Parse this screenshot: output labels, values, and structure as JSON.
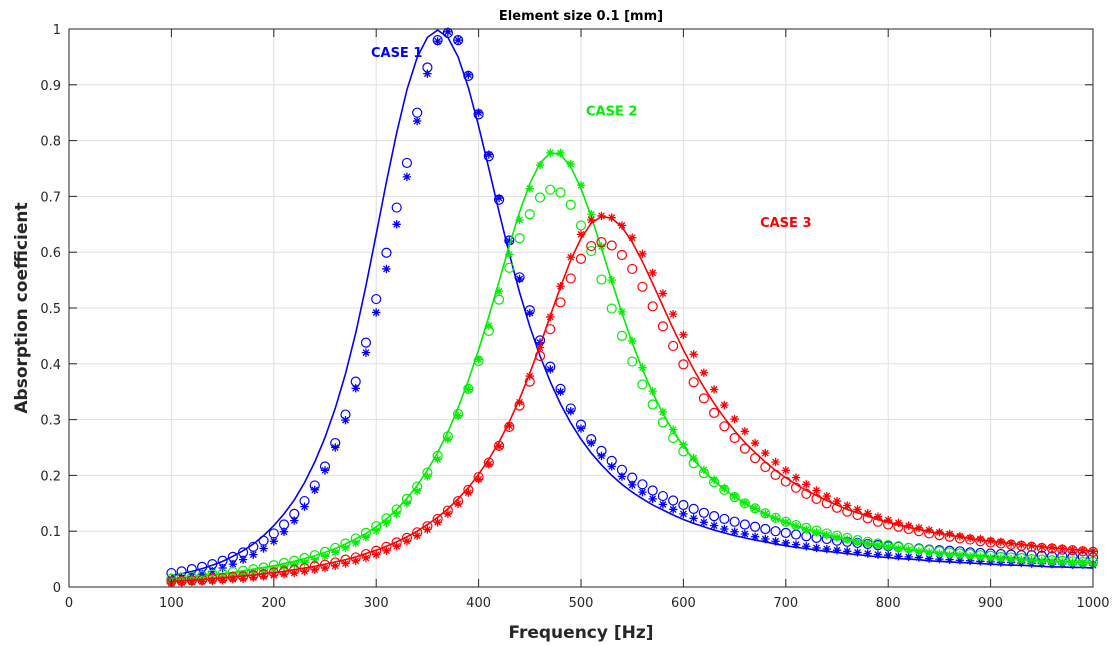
{
  "chart_data": {
    "type": "line",
    "title": "Element size 0.1 [mm]",
    "xlabel": "Frequency [Hz]",
    "ylabel": "Absorption coefficient",
    "xlim": [
      0,
      1000
    ],
    "ylim": [
      0,
      1
    ],
    "xticks": [
      "0",
      "100",
      "200",
      "300",
      "400",
      "500",
      "600",
      "700",
      "800",
      "900",
      "1000"
    ],
    "yticks": [
      "0",
      "0.1",
      "0.2",
      "0.3",
      "0.4",
      "0.5",
      "0.6",
      "0.7",
      "0.8",
      "0.9",
      "1"
    ],
    "grid": true,
    "marker_x": [
      100,
      110,
      120,
      130,
      140,
      150,
      160,
      170,
      180,
      190,
      200,
      210,
      220,
      230,
      240,
      250,
      260,
      270,
      280,
      290,
      300,
      310,
      320,
      330,
      340,
      350,
      360,
      370,
      380,
      390,
      400,
      410,
      420,
      430,
      440,
      450,
      460,
      470,
      480,
      490,
      500,
      510,
      520,
      530,
      540,
      550,
      560,
      570,
      580,
      590,
      600,
      610,
      620,
      630,
      640,
      650,
      660,
      670,
      680,
      690,
      700,
      710,
      720,
      730,
      740,
      750,
      760,
      770,
      780,
      790,
      800,
      810,
      820,
      830,
      840,
      850,
      860,
      870,
      880,
      890,
      900,
      910,
      920,
      930,
      940,
      950,
      960,
      970,
      980,
      990,
      1000
    ],
    "annotations": [
      {
        "text": "CASE 1",
        "x": 320,
        "y": 0.95,
        "color": "#0000ff"
      },
      {
        "text": "CASE 2",
        "x": 530,
        "y": 0.845,
        "color": "#00ee00"
      },
      {
        "text": "CASE 3",
        "x": 700,
        "y": 0.645,
        "color": "#ff0000"
      }
    ],
    "series": [
      {
        "color": "#0000ff",
        "type": "line",
        "values": [
          0.02,
          0.024,
          0.028,
          0.033,
          0.039,
          0.046,
          0.055,
          0.065,
          0.077,
          0.092,
          0.11,
          0.131,
          0.156,
          0.187,
          0.224,
          0.268,
          0.32,
          0.382,
          0.455,
          0.54,
          0.632,
          0.726,
          0.814,
          0.891,
          0.949,
          0.985,
          0.998,
          0.985,
          0.95,
          0.895,
          0.826,
          0.75,
          0.672,
          0.597,
          0.528,
          0.467,
          0.414,
          0.368,
          0.328,
          0.294,
          0.265,
          0.24,
          0.219,
          0.2,
          0.184,
          0.17,
          0.158,
          0.147,
          0.138,
          0.129,
          0.121,
          0.114,
          0.108,
          0.102,
          0.097,
          0.092,
          0.088,
          0.084,
          0.081,
          0.077,
          0.074,
          0.071,
          0.069,
          0.066,
          0.064,
          0.062,
          0.06,
          0.058,
          0.056,
          0.054,
          0.053,
          0.051,
          0.05,
          0.049,
          0.047,
          0.046,
          0.045,
          0.044,
          0.043,
          0.042,
          0.041,
          0.04,
          0.039,
          0.039,
          0.038,
          0.037,
          0.036,
          0.036,
          0.035,
          0.035,
          0.034
        ]
      },
      {
        "color": "#0000ff",
        "type": "circle",
        "values": [
          0.025,
          0.028,
          0.032,
          0.036,
          0.041,
          0.047,
          0.054,
          0.062,
          0.072,
          0.083,
          0.096,
          0.112,
          0.131,
          0.154,
          0.182,
          0.216,
          0.258,
          0.309,
          0.368,
          0.438,
          0.516,
          0.599,
          0.68,
          0.76,
          0.85,
          0.931,
          0.98,
          0.993,
          0.98,
          0.916,
          0.847,
          0.772,
          0.694,
          0.621,
          0.555,
          0.496,
          0.442,
          0.395,
          0.355,
          0.32,
          0.291,
          0.265,
          0.244,
          0.226,
          0.21,
          0.196,
          0.184,
          0.173,
          0.163,
          0.155,
          0.147,
          0.14,
          0.133,
          0.127,
          0.122,
          0.117,
          0.112,
          0.108,
          0.104,
          0.1,
          0.097,
          0.094,
          0.091,
          0.088,
          0.086,
          0.083,
          0.081,
          0.079,
          0.077,
          0.075,
          0.073,
          0.072,
          0.07,
          0.069,
          0.067,
          0.066,
          0.065,
          0.064,
          0.062,
          0.061,
          0.06,
          0.059,
          0.058,
          0.057,
          0.057,
          0.056,
          0.055,
          0.055,
          0.054,
          0.054,
          0.053
        ]
      },
      {
        "color": "#0000ff",
        "type": "star",
        "values": [
          0.013,
          0.016,
          0.019,
          0.023,
          0.028,
          0.034,
          0.041,
          0.049,
          0.058,
          0.069,
          0.082,
          0.099,
          0.119,
          0.144,
          0.174,
          0.209,
          0.25,
          0.299,
          0.356,
          0.42,
          0.492,
          0.57,
          0.65,
          0.735,
          0.835,
          0.92,
          0.978,
          0.995,
          0.98,
          0.918,
          0.85,
          0.775,
          0.697,
          0.62,
          0.552,
          0.491,
          0.438,
          0.39,
          0.35,
          0.315,
          0.284,
          0.258,
          0.235,
          0.216,
          0.198,
          0.183,
          0.17,
          0.158,
          0.148,
          0.139,
          0.131,
          0.123,
          0.116,
          0.11,
          0.104,
          0.099,
          0.095,
          0.09,
          0.086,
          0.082,
          0.079,
          0.076,
          0.073,
          0.07,
          0.068,
          0.066,
          0.064,
          0.062,
          0.06,
          0.058,
          0.057,
          0.055,
          0.054,
          0.053,
          0.051,
          0.05,
          0.049,
          0.048,
          0.047,
          0.046,
          0.045,
          0.044,
          0.044,
          0.043,
          0.042,
          0.042,
          0.041,
          0.041,
          0.04,
          0.04,
          0.039
        ]
      },
      {
        "color": "#00ee00",
        "type": "line",
        "values": [
          0.015,
          0.016,
          0.018,
          0.02,
          0.022,
          0.024,
          0.026,
          0.029,
          0.032,
          0.035,
          0.038,
          0.042,
          0.046,
          0.051,
          0.056,
          0.062,
          0.069,
          0.077,
          0.086,
          0.096,
          0.108,
          0.122,
          0.139,
          0.159,
          0.182,
          0.209,
          0.241,
          0.278,
          0.321,
          0.37,
          0.425,
          0.485,
          0.548,
          0.612,
          0.672,
          0.723,
          0.76,
          0.778,
          0.775,
          0.753,
          0.714,
          0.664,
          0.607,
          0.548,
          0.491,
          0.438,
          0.39,
          0.348,
          0.311,
          0.279,
          0.252,
          0.228,
          0.208,
          0.19,
          0.175,
          0.162,
          0.15,
          0.14,
          0.131,
          0.123,
          0.116,
          0.109,
          0.104,
          0.098,
          0.094,
          0.089,
          0.085,
          0.082,
          0.078,
          0.075,
          0.072,
          0.07,
          0.067,
          0.065,
          0.063,
          0.061,
          0.059,
          0.058,
          0.056,
          0.055,
          0.053,
          0.052,
          0.051,
          0.05,
          0.048,
          0.047,
          0.046,
          0.045,
          0.045,
          0.044,
          0.043
        ]
      },
      {
        "color": "#00ee00",
        "type": "circle",
        "values": [
          0.015,
          0.017,
          0.018,
          0.02,
          0.022,
          0.024,
          0.027,
          0.029,
          0.032,
          0.035,
          0.039,
          0.043,
          0.047,
          0.052,
          0.057,
          0.063,
          0.07,
          0.078,
          0.087,
          0.097,
          0.109,
          0.123,
          0.139,
          0.158,
          0.18,
          0.205,
          0.235,
          0.27,
          0.31,
          0.355,
          0.405,
          0.459,
          0.515,
          0.572,
          0.625,
          0.668,
          0.698,
          0.712,
          0.707,
          0.685,
          0.648,
          0.602,
          0.551,
          0.499,
          0.45,
          0.404,
          0.363,
          0.327,
          0.295,
          0.267,
          0.243,
          0.222,
          0.204,
          0.188,
          0.174,
          0.161,
          0.15,
          0.141,
          0.132,
          0.124,
          0.117,
          0.111,
          0.106,
          0.101,
          0.096,
          0.092,
          0.088,
          0.084,
          0.081,
          0.078,
          0.075,
          0.073,
          0.07,
          0.068,
          0.066,
          0.064,
          0.062,
          0.06,
          0.059,
          0.057,
          0.056,
          0.054,
          0.053,
          0.052,
          0.05,
          0.049,
          0.048,
          0.047,
          0.046,
          0.045,
          0.045
        ]
      },
      {
        "color": "#00ee00",
        "type": "star",
        "values": [
          0.011,
          0.012,
          0.014,
          0.015,
          0.017,
          0.019,
          0.021,
          0.023,
          0.026,
          0.029,
          0.032,
          0.036,
          0.04,
          0.044,
          0.049,
          0.055,
          0.062,
          0.07,
          0.079,
          0.089,
          0.101,
          0.115,
          0.131,
          0.15,
          0.172,
          0.198,
          0.229,
          0.265,
          0.307,
          0.354,
          0.408,
          0.468,
          0.53,
          0.596,
          0.658,
          0.714,
          0.756,
          0.778,
          0.778,
          0.758,
          0.72,
          0.668,
          0.61,
          0.55,
          0.493,
          0.441,
          0.393,
          0.351,
          0.314,
          0.282,
          0.255,
          0.231,
          0.21,
          0.192,
          0.177,
          0.163,
          0.151,
          0.141,
          0.131,
          0.123,
          0.116,
          0.109,
          0.103,
          0.098,
          0.093,
          0.089,
          0.085,
          0.081,
          0.078,
          0.075,
          0.072,
          0.069,
          0.067,
          0.064,
          0.062,
          0.06,
          0.058,
          0.057,
          0.055,
          0.054,
          0.052,
          0.051,
          0.05,
          0.049,
          0.048,
          0.047,
          0.046,
          0.045,
          0.044,
          0.043,
          0.042
        ]
      },
      {
        "color": "#ff0000",
        "type": "line",
        "values": [
          0.01,
          0.011,
          0.012,
          0.013,
          0.015,
          0.016,
          0.018,
          0.02,
          0.021,
          0.024,
          0.026,
          0.028,
          0.031,
          0.034,
          0.037,
          0.041,
          0.045,
          0.049,
          0.054,
          0.06,
          0.066,
          0.073,
          0.081,
          0.09,
          0.1,
          0.112,
          0.125,
          0.14,
          0.158,
          0.178,
          0.202,
          0.229,
          0.26,
          0.296,
          0.337,
          0.383,
          0.433,
          0.486,
          0.538,
          0.586,
          0.625,
          0.652,
          0.664,
          0.661,
          0.645,
          0.618,
          0.583,
          0.544,
          0.503,
          0.463,
          0.425,
          0.39,
          0.358,
          0.329,
          0.303,
          0.28,
          0.259,
          0.241,
          0.224,
          0.209,
          0.196,
          0.184,
          0.173,
          0.164,
          0.155,
          0.147,
          0.139,
          0.133,
          0.127,
          0.121,
          0.116,
          0.111,
          0.107,
          0.103,
          0.099,
          0.096,
          0.093,
          0.09,
          0.087,
          0.084,
          0.082,
          0.08,
          0.078,
          0.076,
          0.074,
          0.072,
          0.07,
          0.069,
          0.067,
          0.066,
          0.064
        ]
      },
      {
        "color": "#ff0000",
        "type": "circle",
        "values": [
          0.01,
          0.011,
          0.012,
          0.013,
          0.015,
          0.016,
          0.018,
          0.019,
          0.021,
          0.023,
          0.026,
          0.028,
          0.031,
          0.034,
          0.037,
          0.04,
          0.044,
          0.049,
          0.053,
          0.059,
          0.065,
          0.072,
          0.08,
          0.088,
          0.098,
          0.109,
          0.122,
          0.137,
          0.154,
          0.174,
          0.197,
          0.223,
          0.253,
          0.287,
          0.325,
          0.368,
          0.414,
          0.462,
          0.51,
          0.553,
          0.588,
          0.611,
          0.618,
          0.612,
          0.595,
          0.57,
          0.538,
          0.503,
          0.467,
          0.432,
          0.399,
          0.367,
          0.338,
          0.312,
          0.288,
          0.267,
          0.248,
          0.231,
          0.215,
          0.201,
          0.189,
          0.178,
          0.167,
          0.158,
          0.15,
          0.142,
          0.135,
          0.129,
          0.123,
          0.117,
          0.112,
          0.108,
          0.104,
          0.1,
          0.096,
          0.093,
          0.09,
          0.087,
          0.085,
          0.082,
          0.08,
          0.078,
          0.076,
          0.074,
          0.072,
          0.07,
          0.069,
          0.067,
          0.066,
          0.064,
          0.063
        ]
      },
      {
        "color": "#ff0000",
        "type": "star",
        "values": [
          0.007,
          0.008,
          0.009,
          0.01,
          0.011,
          0.012,
          0.014,
          0.015,
          0.017,
          0.019,
          0.021,
          0.023,
          0.025,
          0.028,
          0.031,
          0.034,
          0.038,
          0.042,
          0.047,
          0.052,
          0.058,
          0.065,
          0.073,
          0.082,
          0.092,
          0.103,
          0.116,
          0.131,
          0.149,
          0.169,
          0.193,
          0.22,
          0.252,
          0.289,
          0.331,
          0.378,
          0.429,
          0.484,
          0.539,
          0.591,
          0.632,
          0.658,
          0.665,
          0.662,
          0.648,
          0.626,
          0.597,
          0.563,
          0.526,
          0.489,
          0.452,
          0.417,
          0.384,
          0.354,
          0.326,
          0.301,
          0.279,
          0.258,
          0.24,
          0.224,
          0.209,
          0.196,
          0.184,
          0.173,
          0.163,
          0.154,
          0.146,
          0.139,
          0.132,
          0.126,
          0.12,
          0.115,
          0.11,
          0.106,
          0.102,
          0.098,
          0.095,
          0.091,
          0.088,
          0.086,
          0.083,
          0.081,
          0.078,
          0.076,
          0.074,
          0.072,
          0.071,
          0.069,
          0.067,
          0.066,
          0.064
        ]
      }
    ]
  }
}
